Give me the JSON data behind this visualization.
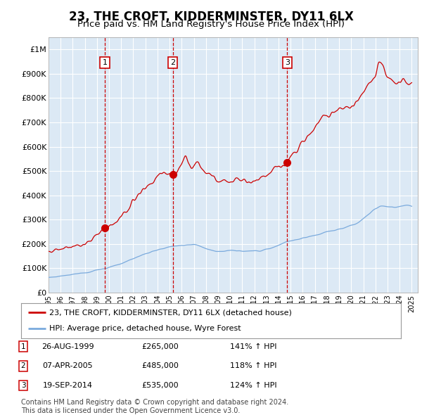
{
  "title": "23, THE CROFT, KIDDERMINSTER, DY11 6LX",
  "subtitle": "Price paid vs. HM Land Registry's House Price Index (HPI)",
  "title_fontsize": 12,
  "subtitle_fontsize": 9.5,
  "background_color": "#ffffff",
  "plot_bg_color": "#dce9f5",
  "grid_color": "#ffffff",
  "ylim": [
    0,
    1050000
  ],
  "xlim_start": 1995.0,
  "xlim_end": 2025.5,
  "red_line_color": "#cc0000",
  "blue_line_color": "#7aaadd",
  "sale_dashed_color": "#cc0000",
  "sales": [
    {
      "year": 1999.65,
      "price": 265000,
      "label": "1"
    },
    {
      "year": 2005.27,
      "price": 485000,
      "label": "2"
    },
    {
      "year": 2014.72,
      "price": 535000,
      "label": "3"
    }
  ],
  "legend_entries": [
    "23, THE CROFT, KIDDERMINSTER, DY11 6LX (detached house)",
    "HPI: Average price, detached house, Wyre Forest"
  ],
  "table_rows": [
    [
      "1",
      "26-AUG-1999",
      "£265,000",
      "141% ↑ HPI"
    ],
    [
      "2",
      "07-APR-2005",
      "£485,000",
      "118% ↑ HPI"
    ],
    [
      "3",
      "19-SEP-2014",
      "£535,000",
      "124% ↑ HPI"
    ]
  ],
  "footer": "Contains HM Land Registry data © Crown copyright and database right 2024.\nThis data is licensed under the Open Government Licence v3.0.",
  "footer_fontsize": 7
}
